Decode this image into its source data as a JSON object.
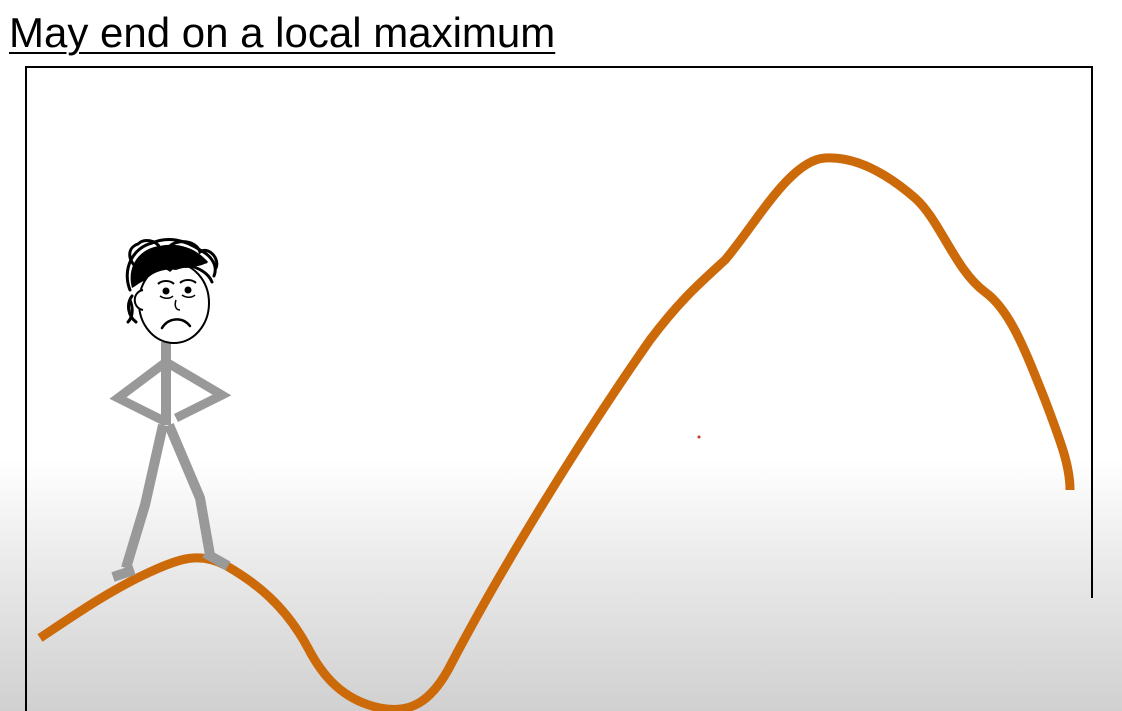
{
  "slide": {
    "title": "May end on a local maximum"
  },
  "colors": {
    "terrain": "#cc6a0a",
    "stick_figure": "#999999",
    "frame": "#000000",
    "hair": "#000000"
  },
  "figure": {
    "expression": "sad"
  }
}
